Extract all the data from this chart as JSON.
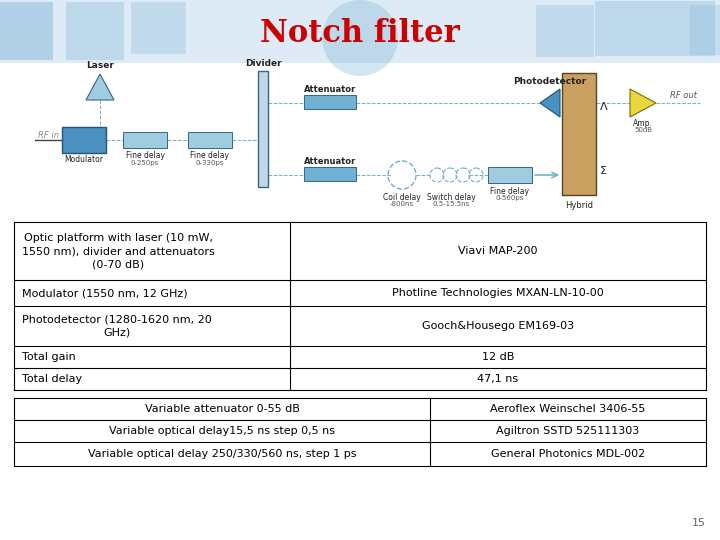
{
  "title": "Notch filter",
  "title_color": "#cc0000",
  "title_fontsize": 22,
  "background_color": "#ffffff",
  "page_number": "15",
  "table": {
    "upper": {
      "rows": [
        {
          "left": "Optic platform with laser (10 mW,\n1550 nm), divider and attenuators\n(0-70 dB)",
          "right": "Viavi MAP-200"
        },
        {
          "left": "Modulator (1550 nm, 12 GHz)",
          "right": "Photline Technologies MXAN-LN-10-00"
        },
        {
          "left": "Photodetector (1280-1620 nm, 20\nGHz)",
          "right": "Gooch&Housego EM169-03"
        },
        {
          "left": "Total gain",
          "right": "12 dB"
        },
        {
          "left": "Total delay",
          "right": "47,1 ns"
        }
      ]
    },
    "lower": {
      "rows": [
        {
          "left": "Variable attenuator 0-55 dB",
          "right": "Aeroflex Weinschel 3406-55"
        },
        {
          "left": "Variable optical delay15,5 ns step 0,5 ns",
          "right": "Agiltron SSTD 525111303"
        },
        {
          "left": "Variable optical delay 250/330/560 ns, step 1 ps",
          "right": "General Photonics MDL-002"
        }
      ]
    }
  },
  "table_font_size": 8.0,
  "table_border_color": "#000000",
  "comp_color_dark": "#4a90c0",
  "comp_color_light": "#a0cce0",
  "comp_color_mid": "#70b0d0",
  "hybrid_color": "#c8a060",
  "amp_color": "#e8d840",
  "line_color": "#70b0c8",
  "banner_color": "#c8dff0",
  "diagram_bg": "#ffffff"
}
